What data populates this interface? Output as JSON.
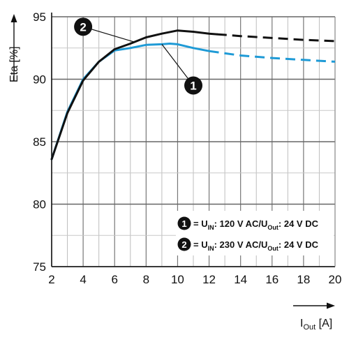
{
  "chart_data": {
    "type": "line",
    "title": "",
    "xlabel": "I",
    "xlabel_sub": "Out",
    "xlabel_unit": "[A]",
    "ylabel": "Eta [%]",
    "xlim": [
      2,
      20
    ],
    "ylim": [
      75,
      95
    ],
    "xticks": [
      2,
      4,
      6,
      8,
      10,
      12,
      14,
      16,
      18,
      20
    ],
    "yticks": [
      75,
      80,
      85,
      90,
      95
    ],
    "grid": true,
    "series": [
      {
        "name": "1",
        "color": "#1e9ad6",
        "solid": [
          [
            2,
            83.6
          ],
          [
            3,
            87.4
          ],
          [
            4,
            90.0
          ],
          [
            5,
            91.4
          ],
          [
            6,
            92.3
          ],
          [
            7,
            92.5
          ],
          [
            8,
            92.75
          ],
          [
            9,
            92.8
          ],
          [
            9.5,
            92.85
          ],
          [
            10,
            92.8
          ],
          [
            11,
            92.5
          ],
          [
            12,
            92.25
          ]
        ],
        "dashed": [
          [
            12,
            92.25
          ],
          [
            14,
            91.9
          ],
          [
            16,
            91.7
          ],
          [
            18,
            91.55
          ],
          [
            20,
            91.4
          ]
        ]
      },
      {
        "name": "2",
        "color": "#111111",
        "solid": [
          [
            2,
            83.6
          ],
          [
            3,
            87.3
          ],
          [
            4,
            89.9
          ],
          [
            5,
            91.4
          ],
          [
            6,
            92.4
          ],
          [
            7,
            92.85
          ],
          [
            8,
            93.35
          ],
          [
            9,
            93.65
          ],
          [
            10,
            93.9
          ],
          [
            11,
            93.8
          ],
          [
            12,
            93.65
          ],
          [
            12.5,
            93.6
          ]
        ],
        "dashed": [
          [
            12.5,
            93.6
          ],
          [
            14,
            93.45
          ],
          [
            16,
            93.3
          ],
          [
            18,
            93.15
          ],
          [
            20,
            93.05
          ]
        ]
      }
    ],
    "markers": [
      {
        "label": "1",
        "point": [
          11.0,
          89.5
        ]
      },
      {
        "label": "2",
        "point": [
          4.0,
          94.2
        ]
      }
    ],
    "legend": {
      "position": "bottom-right",
      "entries": [
        {
          "marker": "1",
          "parts": [
            "= U",
            "IN",
            ": 120 V AC/U",
            "Out",
            ": 24 V DC"
          ]
        },
        {
          "marker": "2",
          "parts": [
            "= U",
            "IN",
            ": 230 V AC/U",
            "Out",
            ": 24 V DC"
          ]
        }
      ]
    }
  }
}
